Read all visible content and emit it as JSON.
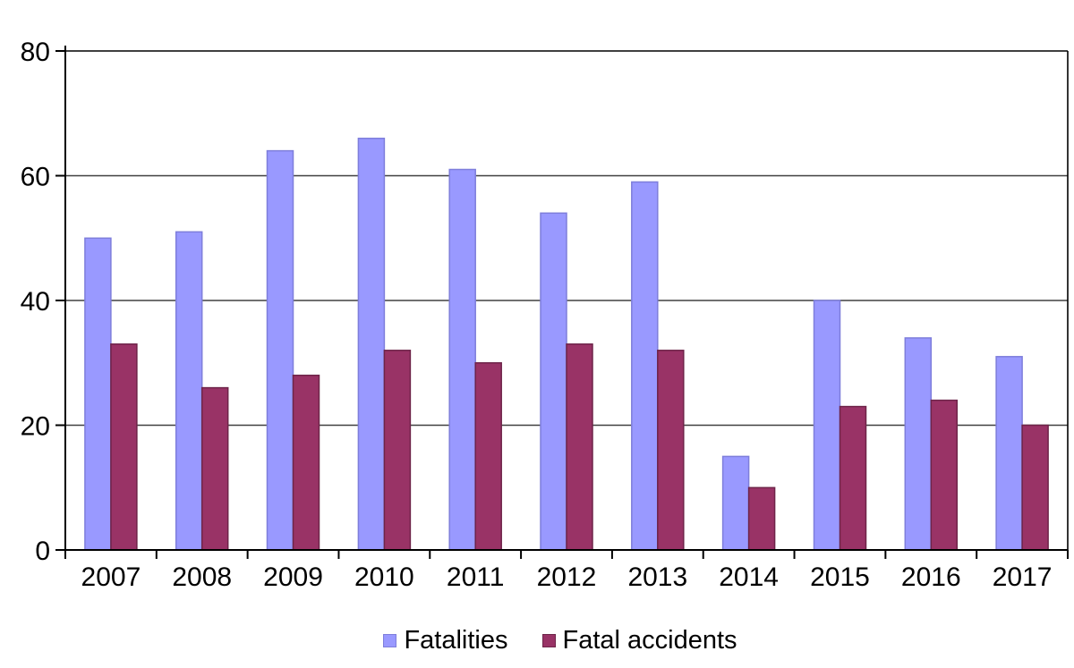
{
  "chart_data": {
    "type": "bar",
    "title": "",
    "categories": [
      "2007",
      "2008",
      "2009",
      "2010",
      "2011",
      "2012",
      "2013",
      "2014",
      "2015",
      "2016",
      "2017"
    ],
    "series": [
      {
        "name": "Fatalities",
        "values": [
          50,
          51,
          64,
          66,
          61,
          54,
          59,
          15,
          40,
          34,
          31
        ],
        "color": "#9999FF",
        "border_color": "#7E7EDB"
      },
      {
        "name": "Fatal accidents",
        "values": [
          33,
          26,
          28,
          32,
          30,
          33,
          32,
          10,
          23,
          24,
          20
        ],
        "color": "#993366",
        "border_color": "#6E2449"
      }
    ],
    "xlabel": "",
    "ylabel": "",
    "ylim": [
      0,
      80
    ],
    "yticks": [
      0,
      20,
      40,
      60,
      80
    ],
    "ytick_labels": [
      "0",
      "20",
      "40",
      "60",
      "80"
    ],
    "grid": "horizontal",
    "legend_position": "bottom",
    "colors": {
      "axis": "#000000",
      "gridline": "#404040",
      "text": "#000000",
      "background": "#FFFFFF"
    }
  }
}
